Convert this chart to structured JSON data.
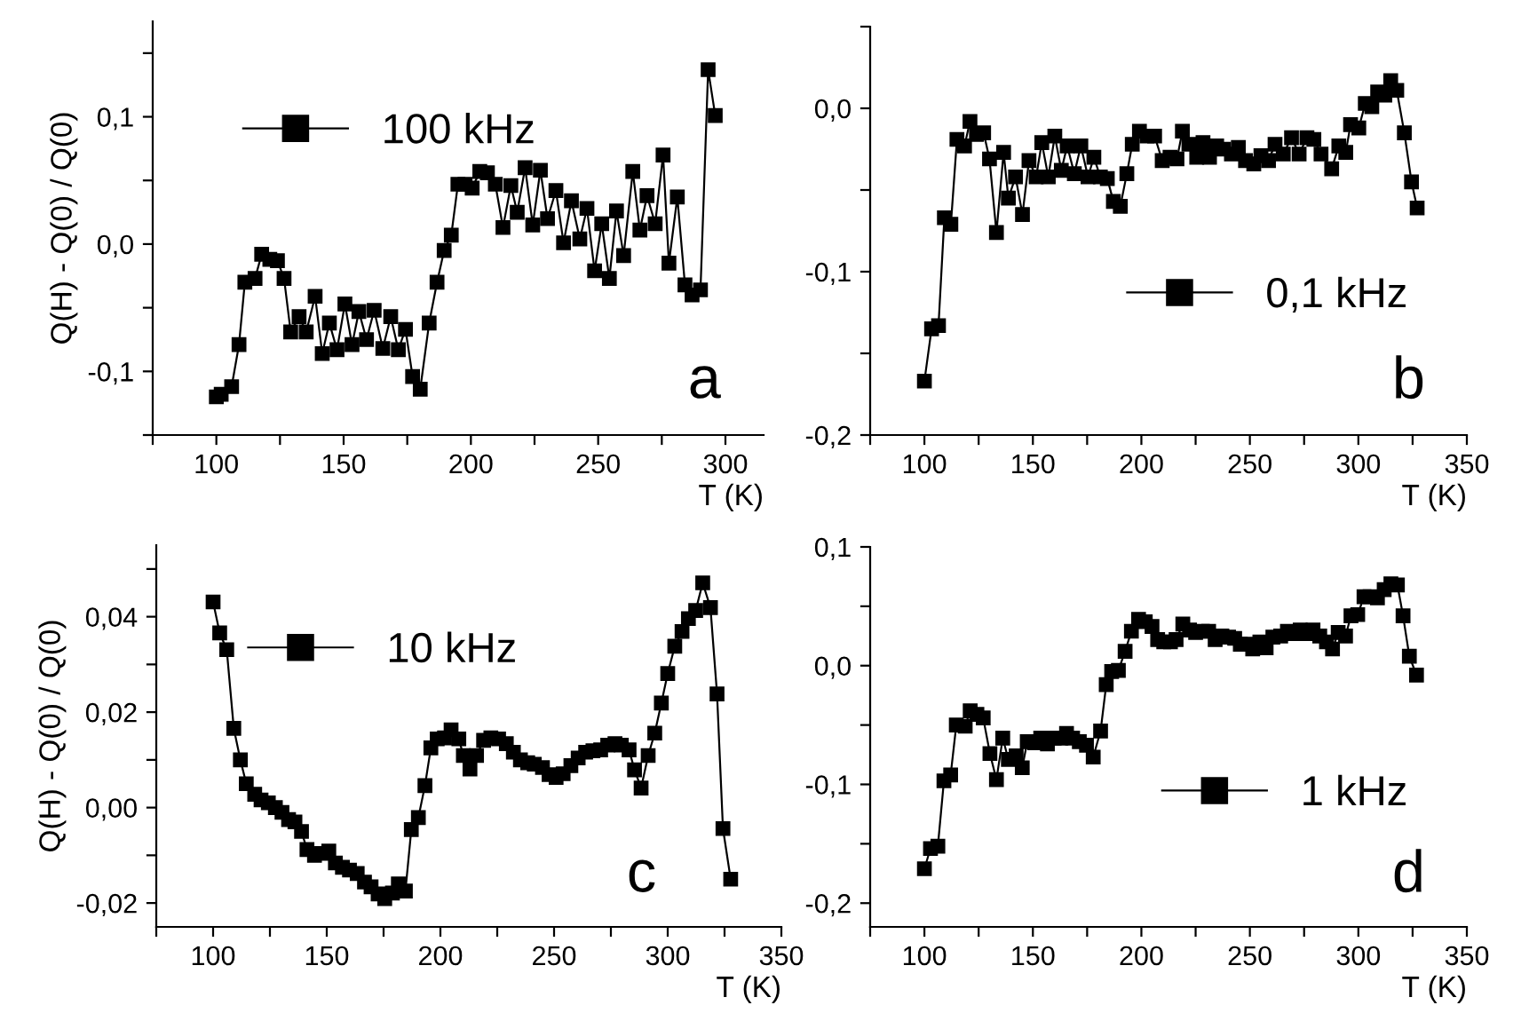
{
  "chart_data": [
    {
      "type": "line",
      "ylabel": "Q(H) - Q(0) / Q(0)",
      "xlabel": "T (K)",
      "annotations": [
        "a"
      ],
      "legend": "top left",
      "marker": "square",
      "line_style": "solid",
      "grid": false,
      "xlim": [
        75,
        315
      ],
      "xticks": [
        {
          "value": 75,
          "label": null
        },
        100,
        {
          "value": 125,
          "label": null
        },
        150,
        {
          "value": 175,
          "label": null
        },
        200,
        {
          "value": 225,
          "label": null
        },
        250,
        {
          "value": 275,
          "label": null
        },
        300
      ],
      "ylim": [
        -0.15,
        0.175
      ],
      "yticks": [
        {
          "value": -0.15,
          "label": null
        },
        {
          "value": -0.1,
          "label": "-0,1"
        },
        {
          "value": -0.05,
          "label": null
        },
        {
          "value": 0,
          "label": "0,0"
        },
        {
          "value": 0.05,
          "label": null
        },
        {
          "value": 0.1,
          "label": "0,1"
        },
        {
          "value": 0.15,
          "label": null
        }
      ],
      "series": [
        {
          "name": "100 kHz",
          "color": "#000000",
          "x": [
            100,
            101.9,
            106,
            108.9,
            111.2,
            115.2,
            117.8,
            121,
            124,
            126.6,
            129.2,
            132.5,
            135.3,
            138.8,
            141.6,
            144.4,
            147.4,
            150.5,
            153.3,
            156,
            159,
            162,
            165.4,
            168.5,
            171.5,
            174.3,
            177.1,
            180.1,
            183.6,
            186.7,
            189.5,
            192.3,
            194.9,
            197.7,
            200.5,
            203.5,
            206.5,
            209.6,
            212.6,
            215.7,
            218.2,
            221.3,
            224.3,
            227.3,
            230.1,
            233.4,
            236.4,
            239.5,
            242.8,
            245.6,
            248.6,
            251.4,
            254.4,
            257.2,
            260,
            263.6,
            266.4,
            269.2,
            272.4,
            275.5,
            277.8,
            281.1,
            284.1,
            286.9,
            290.2,
            293.2,
            296
          ],
          "values": [
            -0.12,
            -0.118,
            -0.112,
            -0.079,
            -0.03,
            -0.027,
            -0.008,
            -0.012,
            -0.013,
            -0.027,
            -0.069,
            -0.057,
            -0.069,
            -0.041,
            -0.086,
            -0.062,
            -0.083,
            -0.047,
            -0.079,
            -0.053,
            -0.075,
            -0.052,
            -0.082,
            -0.057,
            -0.083,
            -0.067,
            -0.104,
            -0.114,
            -0.062,
            -0.03,
            -0.005,
            0.007,
            0.047,
            0.047,
            0.044,
            0.057,
            0.056,
            0.047,
            0.013,
            0.046,
            0.025,
            0.06,
            0.015,
            0.058,
            0.02,
            0.042,
            0.001,
            0.034,
            0.004,
            0.028,
            -0.021,
            0.016,
            -0.027,
            0.026,
            -0.009,
            0.057,
            0.011,
            0.038,
            0.016,
            0.07,
            -0.015,
            0.037,
            -0.032,
            -0.04,
            -0.036,
            0.137,
            0.101
          ]
        }
      ]
    },
    {
      "type": "line",
      "xlabel": "T (K)",
      "annotations": [
        "b"
      ],
      "legend": "bottom right",
      "marker": "square",
      "line_style": "solid",
      "grid": false,
      "xlim": [
        75,
        350
      ],
      "xticks": [
        {
          "value": 75,
          "label": null
        },
        100,
        {
          "value": 125,
          "label": null
        },
        150,
        {
          "value": 175,
          "label": null
        },
        200,
        {
          "value": 225,
          "label": null
        },
        250,
        {
          "value": 275,
          "label": null
        },
        300,
        {
          "value": 325,
          "label": null
        },
        350
      ],
      "ylim": [
        -0.2,
        0.05
      ],
      "yticks": [
        {
          "value": -0.2,
          "label": "-0,2"
        },
        {
          "value": -0.15,
          "label": null
        },
        {
          "value": -0.1,
          "label": "-0,1"
        },
        {
          "value": -0.05,
          "label": null
        },
        {
          "value": 0,
          "label": "0,0"
        },
        {
          "value": 0.05,
          "label": null
        }
      ],
      "series": [
        {
          "name": "0,1 kHz",
          "color": "#000000",
          "x": [
            100,
            103.3,
            106.5,
            109.2,
            112.2,
            115,
            118.5,
            121,
            124,
            127.3,
            130,
            133.2,
            136.5,
            138.7,
            142,
            145.2,
            148.2,
            151.5,
            154.1,
            157.1,
            160.1,
            163.1,
            165.8,
            169.1,
            172.1,
            175.4,
            178.1,
            181.1,
            184.3,
            187.1,
            190.3,
            193.3,
            195.8,
            199.1,
            202.6,
            206.1,
            209.6,
            213.2,
            216.4,
            218.9,
            221.9,
            225.5,
            228.4,
            231.4,
            234.7,
            237.9,
            241.5,
            244.7,
            248,
            251.8,
            255.1,
            258.6,
            261.6,
            265.4,
            269.2,
            272.7,
            276.3,
            279.5,
            282.8,
            287.7,
            291,
            294.2,
            296.4,
            300.2,
            303.2,
            306.2,
            308.9,
            312.2,
            314.9,
            317.7,
            321.2,
            324.5,
            327.1
          ],
          "values": [
            -0.167,
            -0.135,
            -0.133,
            -0.067,
            -0.071,
            -0.019,
            -0.023,
            -0.008,
            -0.016,
            -0.015,
            -0.031,
            -0.076,
            -0.027,
            -0.055,
            -0.042,
            -0.065,
            -0.032,
            -0.042,
            -0.021,
            -0.042,
            -0.017,
            -0.038,
            -0.023,
            -0.04,
            -0.023,
            -0.042,
            -0.03,
            -0.042,
            -0.043,
            -0.057,
            -0.06,
            -0.04,
            -0.022,
            -0.014,
            -0.017,
            -0.017,
            -0.032,
            -0.03,
            -0.031,
            -0.014,
            -0.022,
            -0.03,
            -0.021,
            -0.03,
            -0.023,
            -0.025,
            -0.028,
            -0.024,
            -0.032,
            -0.034,
            -0.029,
            -0.032,
            -0.022,
            -0.028,
            -0.018,
            -0.028,
            -0.018,
            -0.019,
            -0.028,
            -0.037,
            -0.023,
            -0.027,
            -0.01,
            -0.012,
            0.003,
            0.001,
            0.01,
            0.008,
            0.017,
            0.011,
            -0.015,
            -0.045,
            -0.061
          ]
        }
      ]
    },
    {
      "type": "line",
      "ylabel": "Q(H) - Q(0) / Q(0)",
      "xlabel": "T (K)",
      "annotations": [
        "c"
      ],
      "legend": "top left",
      "marker": "square",
      "line_style": "solid",
      "grid": false,
      "xlim": [
        75,
        350
      ],
      "xticks": [
        {
          "value": 75,
          "label": null
        },
        100,
        {
          "value": 125,
          "label": null
        },
        150,
        {
          "value": 175,
          "label": null
        },
        200,
        {
          "value": 225,
          "label": null
        },
        250,
        {
          "value": 275,
          "label": null
        },
        300,
        {
          "value": 325,
          "label": null
        },
        350
      ],
      "ylim": [
        -0.025,
        0.055
      ],
      "yticks": [
        {
          "value": -0.02,
          "label": "-0,02"
        },
        {
          "value": -0.01,
          "label": null
        },
        {
          "value": 0,
          "label": "0,00"
        },
        {
          "value": 0.01,
          "label": null
        },
        {
          "value": 0.02,
          "label": "0,02"
        },
        {
          "value": 0.03,
          "label": null
        },
        {
          "value": 0.04,
          "label": "0,04"
        },
        {
          "value": 0.05,
          "label": null
        }
      ],
      "series": [
        {
          "name": "10 kHz",
          "color": "#000000",
          "x": [
            100,
            102.9,
            106,
            109.1,
            112,
            114.6,
            118.3,
            121.1,
            124.3,
            127.4,
            130.3,
            133.2,
            136,
            138.9,
            141.3,
            144.6,
            147.8,
            150.9,
            153.8,
            156.9,
            160,
            163.4,
            166.6,
            169.5,
            172.6,
            175.5,
            178.9,
            181.5,
            184.6,
            187.2,
            190.3,
            193.2,
            195.8,
            198.6,
            201.8,
            204.7,
            208.1,
            210.1,
            213,
            215.9,
            219,
            222.2,
            225.6,
            229,
            232.1,
            235.2,
            238.4,
            241.3,
            244.9,
            247.8,
            250.9,
            254,
            257.4,
            260.6,
            263.9,
            267.1,
            270.5,
            273.6,
            276.8,
            279.6,
            283,
            285.4,
            288.3,
            291.4,
            294.3,
            297.2,
            300,
            303.1,
            306.3,
            309.1,
            312.3,
            315.4,
            318.8,
            321.7,
            324.3,
            327.7
          ],
          "values": [
            0.0431,
            0.0366,
            0.0331,
            0.0166,
            0.01,
            0.005,
            0.0028,
            0.0016,
            0.001,
            0.0,
            -0.001,
            -0.0025,
            -0.003,
            -0.005,
            -0.0088,
            -0.01,
            -0.0096,
            -0.0091,
            -0.0116,
            -0.0125,
            -0.0131,
            -0.0138,
            -0.0156,
            -0.0166,
            -0.0181,
            -0.0191,
            -0.0179,
            -0.016,
            -0.0175,
            -0.0046,
            -0.0021,
            0.0046,
            0.0125,
            0.0144,
            0.0146,
            0.0163,
            0.0144,
            0.0109,
            0.0081,
            0.0109,
            0.0141,
            0.0146,
            0.0144,
            0.0134,
            0.0116,
            0.01,
            0.0094,
            0.0091,
            0.0084,
            0.0069,
            0.0063,
            0.0071,
            0.0088,
            0.0104,
            0.0116,
            0.0119,
            0.0121,
            0.0131,
            0.0134,
            0.0131,
            0.0121,
            0.0079,
            0.0041,
            0.0109,
            0.0156,
            0.0219,
            0.0281,
            0.0338,
            0.0369,
            0.0396,
            0.0413,
            0.0471,
            0.0419,
            0.0238,
            -0.0044,
            -0.015
          ]
        }
      ]
    },
    {
      "type": "line",
      "xlabel": "T (K)",
      "annotations": [
        "d"
      ],
      "legend": "bottom right",
      "marker": "square",
      "line_style": "solid",
      "grid": false,
      "xlim": [
        75,
        350
      ],
      "xticks": [
        {
          "value": 75,
          "label": null
        },
        100,
        {
          "value": 125,
          "label": null
        },
        150,
        {
          "value": 175,
          "label": null
        },
        200,
        {
          "value": 225,
          "label": null
        },
        250,
        {
          "value": 275,
          "label": null
        },
        300,
        {
          "value": 325,
          "label": null
        },
        350
      ],
      "ylim": [
        -0.22,
        0.1
      ],
      "yticks": [
        {
          "value": -0.2,
          "label": "-0,2"
        },
        {
          "value": -0.15,
          "label": null
        },
        {
          "value": -0.1,
          "label": "-0,1"
        },
        {
          "value": -0.05,
          "label": null
        },
        {
          "value": 0,
          "label": "0,0"
        },
        {
          "value": 0.05,
          "label": null
        },
        {
          "value": 0.1,
          "label": "0,1"
        }
      ],
      "series": [
        {
          "name": "1 kHz",
          "color": "#000000",
          "x": [
            100,
            102.8,
            106.2,
            109,
            112.1,
            114.7,
            118.8,
            121.1,
            124.2,
            127.1,
            130.2,
            133.2,
            136.1,
            138.7,
            142.3,
            145.1,
            147.4,
            150.8,
            153.6,
            156.7,
            159.8,
            162.9,
            165.5,
            168.3,
            171.4,
            174.7,
            177.8,
            181.2,
            183.8,
            186.3,
            189.4,
            192.5,
            195.4,
            198.7,
            201.8,
            204.9,
            207.5,
            210.3,
            213.4,
            216,
            219.1,
            222.2,
            225,
            228.1,
            231,
            234,
            237.1,
            240.2,
            243,
            245.6,
            248.7,
            251.3,
            254.6,
            257.5,
            260.6,
            264.2,
            267.3,
            270.1,
            273.2,
            276.3,
            279.1,
            282.2,
            285.3,
            288.1,
            290.7,
            294.1,
            296.6,
            299.7,
            302.6,
            305.4,
            308.8,
            311.9,
            315,
            318,
            320.6,
            323.5,
            326.8
          ],
          "values": [
            -0.171,
            -0.154,
            -0.152,
            -0.097,
            -0.092,
            -0.05,
            -0.051,
            -0.038,
            -0.041,
            -0.044,
            -0.074,
            -0.096,
            -0.061,
            -0.079,
            -0.076,
            -0.086,
            -0.064,
            -0.065,
            -0.061,
            -0.066,
            -0.061,
            -0.061,
            -0.057,
            -0.061,
            -0.064,
            -0.067,
            -0.077,
            -0.055,
            -0.016,
            -0.005,
            -0.004,
            0.012,
            0.029,
            0.039,
            0.037,
            0.033,
            0.022,
            0.02,
            0.02,
            0.022,
            0.035,
            0.03,
            0.028,
            0.029,
            0.029,
            0.022,
            0.025,
            0.024,
            0.023,
            0.018,
            0.018,
            0.014,
            0.02,
            0.015,
            0.024,
            0.025,
            0.029,
            0.027,
            0.03,
            0.027,
            0.03,
            0.025,
            0.02,
            0.014,
            0.028,
            0.025,
            0.042,
            0.043,
            0.058,
            0.058,
            0.057,
            0.064,
            0.069,
            0.068,
            0.042,
            0.008,
            -0.008
          ]
        }
      ]
    }
  ]
}
